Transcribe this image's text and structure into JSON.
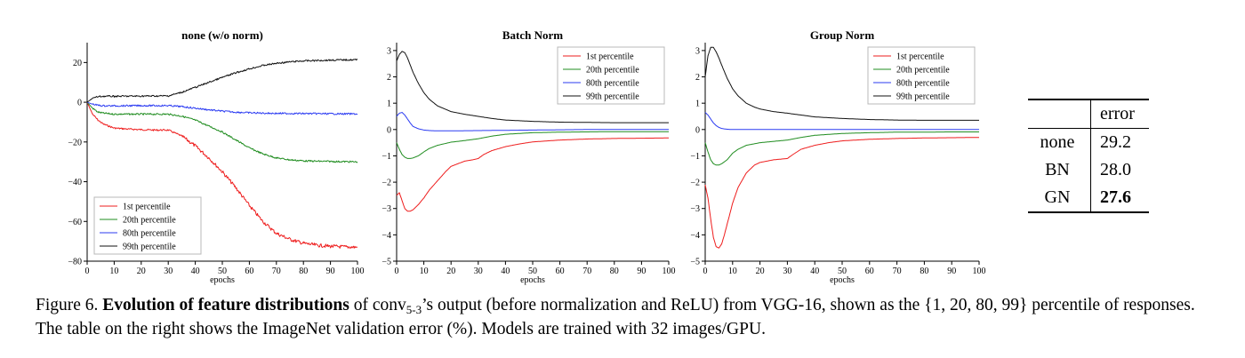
{
  "chart_data": [
    {
      "type": "line",
      "title": "none (w/o norm)",
      "xlabel": "epochs",
      "xlim": [
        0,
        100
      ],
      "ylim": [
        -80,
        30
      ],
      "xticks": [
        0,
        10,
        20,
        30,
        40,
        50,
        60,
        70,
        80,
        90,
        100
      ],
      "yticks": [
        -80,
        -60,
        -40,
        -20,
        0,
        20
      ],
      "legend_position": "bottom-left",
      "grid": false,
      "noise": 0.8,
      "series": [
        {
          "name": "1st percentile",
          "color": "#ee1c1c",
          "x": [
            0,
            2,
            4,
            6,
            8,
            10,
            15,
            20,
            25,
            30,
            35,
            40,
            45,
            50,
            55,
            60,
            65,
            70,
            75,
            80,
            85,
            90,
            95,
            100
          ],
          "y": [
            0,
            -6,
            -9,
            -11,
            -12,
            -13,
            -13.5,
            -13.8,
            -14,
            -14,
            -17,
            -22,
            -28,
            -35,
            -43,
            -52,
            -60,
            -66,
            -69,
            -71,
            -72,
            -72.5,
            -72.8,
            -73
          ]
        },
        {
          "name": "20th percentile",
          "color": "#1f8c1f",
          "x": [
            0,
            2,
            4,
            6,
            10,
            20,
            30,
            35,
            40,
            45,
            50,
            55,
            60,
            65,
            70,
            75,
            80,
            85,
            90,
            95,
            100
          ],
          "y": [
            0,
            -3,
            -5,
            -5.5,
            -6,
            -6,
            -6,
            -7,
            -9,
            -12,
            -15,
            -19,
            -23,
            -26,
            -28,
            -29,
            -29.5,
            -29.7,
            -29.8,
            -29.9,
            -30
          ]
        },
        {
          "name": "80th percentile",
          "color": "#2b3bf2",
          "x": [
            0,
            2,
            4,
            6,
            10,
            20,
            30,
            35,
            40,
            45,
            50,
            55,
            60,
            65,
            70,
            80,
            90,
            100
          ],
          "y": [
            0,
            -1,
            -1.5,
            -1.8,
            -1.8,
            -1.7,
            -1.7,
            -2.2,
            -3,
            -3.8,
            -4.5,
            -5,
            -5.3,
            -5.5,
            -5.6,
            -5.7,
            -5.8,
            -5.9
          ]
        },
        {
          "name": "99th percentile",
          "color": "#111111",
          "x": [
            0,
            2,
            4,
            6,
            10,
            20,
            30,
            35,
            40,
            45,
            50,
            55,
            60,
            65,
            70,
            75,
            80,
            85,
            90,
            95,
            100
          ],
          "y": [
            0,
            2,
            2.8,
            3,
            3,
            3.1,
            3.2,
            5,
            7.5,
            10,
            12.5,
            14.8,
            16.8,
            18.5,
            19.6,
            20.3,
            20.8,
            21,
            21.2,
            21.3,
            21.4
          ]
        }
      ]
    },
    {
      "type": "line",
      "title": "Batch Norm",
      "xlabel": "epochs",
      "xlim": [
        0,
        100
      ],
      "ylim": [
        -5,
        3.3
      ],
      "xticks": [
        0,
        10,
        20,
        30,
        40,
        50,
        60,
        70,
        80,
        90,
        100
      ],
      "yticks": [
        -5,
        -4,
        -3,
        -2,
        -1,
        0,
        1,
        2,
        3
      ],
      "legend_position": "top-right",
      "grid": false,
      "noise": 0,
      "series": [
        {
          "name": "1st percentile",
          "color": "#ee1c1c",
          "x": [
            0,
            1,
            2,
            3,
            4,
            5,
            6,
            8,
            10,
            12,
            15,
            18,
            20,
            25,
            28,
            30,
            32,
            35,
            40,
            45,
            50,
            60,
            70,
            80,
            90,
            100
          ],
          "y": [
            -2.5,
            -2.4,
            -2.7,
            -3.0,
            -3.1,
            -3.1,
            -3.05,
            -2.85,
            -2.6,
            -2.3,
            -1.95,
            -1.6,
            -1.4,
            -1.2,
            -1.15,
            -1.1,
            -0.95,
            -0.8,
            -0.65,
            -0.55,
            -0.47,
            -0.4,
            -0.36,
            -0.34,
            -0.33,
            -0.32
          ]
        },
        {
          "name": "20th percentile",
          "color": "#1f8c1f",
          "x": [
            0,
            1,
            2,
            3,
            4,
            5,
            6,
            8,
            10,
            12,
            15,
            20,
            25,
            30,
            35,
            40,
            50,
            60,
            70,
            80,
            90,
            100
          ],
          "y": [
            -0.5,
            -0.75,
            -0.95,
            -1.05,
            -1.1,
            -1.1,
            -1.08,
            -1.0,
            -0.85,
            -0.72,
            -0.6,
            -0.48,
            -0.42,
            -0.35,
            -0.25,
            -0.18,
            -0.12,
            -0.1,
            -0.09,
            -0.08,
            -0.08,
            -0.08
          ]
        },
        {
          "name": "80th percentile",
          "color": "#2b3bf2",
          "x": [
            0,
            1,
            2,
            3,
            4,
            5,
            6,
            8,
            10,
            12,
            15,
            20,
            30,
            40,
            50,
            60,
            70,
            80,
            90,
            100
          ],
          "y": [
            0.5,
            0.62,
            0.65,
            0.55,
            0.4,
            0.25,
            0.12,
            0.03,
            -0.02,
            -0.04,
            -0.05,
            -0.05,
            -0.04,
            -0.03,
            -0.02,
            -0.01,
            0,
            0,
            0,
            0
          ]
        },
        {
          "name": "99th percentile",
          "color": "#111111",
          "x": [
            0,
            1,
            2,
            3,
            4,
            5,
            6,
            8,
            10,
            12,
            15,
            20,
            25,
            30,
            35,
            40,
            50,
            60,
            70,
            80,
            90,
            100
          ],
          "y": [
            2.6,
            2.85,
            2.97,
            2.92,
            2.72,
            2.45,
            2.18,
            1.75,
            1.4,
            1.15,
            0.9,
            0.68,
            0.58,
            0.5,
            0.42,
            0.36,
            0.31,
            0.28,
            0.27,
            0.26,
            0.26,
            0.26
          ]
        }
      ]
    },
    {
      "type": "line",
      "title": "Group Norm",
      "xlabel": "epochs",
      "xlim": [
        0,
        100
      ],
      "ylim": [
        -5,
        3.3
      ],
      "xticks": [
        0,
        10,
        20,
        30,
        40,
        50,
        60,
        70,
        80,
        90,
        100
      ],
      "yticks": [
        -5,
        -4,
        -3,
        -2,
        -1,
        0,
        1,
        2,
        3
      ],
      "legend_position": "top-right",
      "grid": false,
      "noise": 0,
      "series": [
        {
          "name": "1st percentile",
          "color": "#ee1c1c",
          "x": [
            0,
            1,
            2,
            3,
            4,
            5,
            6,
            7,
            8,
            10,
            12,
            15,
            18,
            20,
            25,
            30,
            32,
            35,
            40,
            45,
            50,
            60,
            70,
            80,
            90,
            100
          ],
          "y": [
            -2.1,
            -2.6,
            -3.4,
            -4.1,
            -4.45,
            -4.5,
            -4.35,
            -4.0,
            -3.6,
            -2.8,
            -2.2,
            -1.65,
            -1.35,
            -1.25,
            -1.15,
            -1.1,
            -0.95,
            -0.75,
            -0.6,
            -0.5,
            -0.43,
            -0.37,
            -0.34,
            -0.32,
            -0.31,
            -0.3
          ]
        },
        {
          "name": "20th percentile",
          "color": "#1f8c1f",
          "x": [
            0,
            1,
            2,
            3,
            4,
            5,
            6,
            8,
            10,
            12,
            15,
            20,
            25,
            30,
            35,
            40,
            50,
            60,
            70,
            80,
            90,
            100
          ],
          "y": [
            -0.5,
            -0.85,
            -1.15,
            -1.3,
            -1.35,
            -1.35,
            -1.3,
            -1.15,
            -0.9,
            -0.75,
            -0.6,
            -0.5,
            -0.45,
            -0.4,
            -0.3,
            -0.22,
            -0.15,
            -0.12,
            -0.1,
            -0.1,
            -0.09,
            -0.09
          ]
        },
        {
          "name": "80th percentile",
          "color": "#2b3bf2",
          "x": [
            0,
            1,
            2,
            3,
            4,
            5,
            6,
            8,
            10,
            12,
            15,
            20,
            30,
            40,
            50,
            60,
            70,
            80,
            90,
            100
          ],
          "y": [
            0.65,
            0.55,
            0.4,
            0.25,
            0.15,
            0.08,
            0.04,
            0.01,
            0,
            0,
            0,
            0,
            0,
            0,
            0,
            0,
            0,
            0,
            0,
            0
          ]
        },
        {
          "name": "99th percentile",
          "color": "#111111",
          "x": [
            0,
            1,
            2,
            3,
            4,
            5,
            6,
            7,
            8,
            10,
            12,
            15,
            18,
            20,
            25,
            30,
            35,
            40,
            50,
            60,
            70,
            80,
            90,
            100
          ],
          "y": [
            2.0,
            2.8,
            3.12,
            3.12,
            2.95,
            2.72,
            2.45,
            2.2,
            1.95,
            1.55,
            1.28,
            1.0,
            0.85,
            0.78,
            0.68,
            0.62,
            0.55,
            0.48,
            0.42,
            0.38,
            0.36,
            0.35,
            0.35,
            0.35
          ]
        }
      ]
    }
  ],
  "table": {
    "header": [
      "",
      "error"
    ],
    "rows": [
      {
        "label": "none",
        "value": "29.2",
        "bold": false
      },
      {
        "label": "BN",
        "value": "28.0",
        "bold": false
      },
      {
        "label": "GN",
        "value": "27.6",
        "bold": true
      }
    ]
  },
  "caption": {
    "prefix": "Figure 6. ",
    "bold": "Evolution of feature distributions",
    "part1": " of conv",
    "sub": "5-3",
    "part2": "’s output (before normalization and ReLU) from VGG-16, shown as the {1, 20, 80, 99} percentile of responses. The table on the right shows the ImageNet validation error (%). Models are trained with 32 images/GPU."
  }
}
